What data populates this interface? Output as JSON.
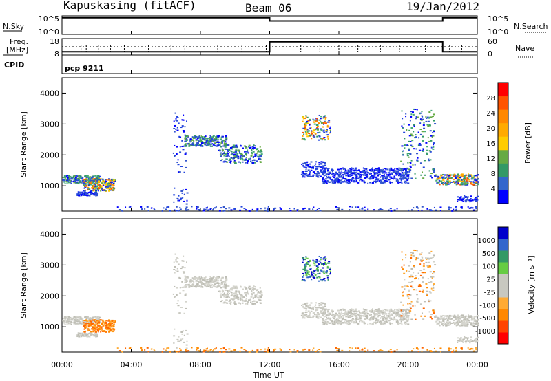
{
  "header": {
    "station": "Kapuskasing (fitACF)",
    "beam": "Beam 06",
    "date": "19/Jan/2012"
  },
  "colors": {
    "frame": "#000000",
    "power_scale": [
      "#0000ff",
      "#3366cc",
      "#339966",
      "#66aa44",
      "#ffcc00",
      "#ffaa00",
      "#ff8800",
      "#ff5500",
      "#ff0000"
    ],
    "velocity_scale": [
      "#ff0000",
      "#ff4400",
      "#ff8800",
      "#ffaa33",
      "#c8c8c0",
      "#c8c8c0",
      "#66cc44",
      "#339966",
      "#3366cc",
      "#0000cc"
    ]
  },
  "panels": {
    "nsky": {
      "left_label": "N.Sky",
      "right_label": "N.Search",
      "left_ticks": [
        "10^5",
        "10^0"
      ],
      "right_ticks": [
        "10^5",
        "10^0"
      ]
    },
    "freq": {
      "left_label_top": "Freq.",
      "left_label_bottom": "[MHz]",
      "right_label": "Nave",
      "left_ticks": [
        "18",
        "8"
      ],
      "right_ticks": [
        "60",
        "0"
      ]
    },
    "cpid": {
      "label": "CPID",
      "value": "pcp 9211"
    }
  },
  "chart_data": [
    {
      "type": "line",
      "name": "N.Sky / N.Search",
      "x": [
        "00:00",
        "12:00",
        "12:00",
        "22:00",
        "22:00",
        "24:00"
      ],
      "y": [
        4.5,
        4.5,
        3.6,
        3.6,
        4.5,
        4.5
      ],
      "ylim": [
        0,
        5
      ],
      "yscale": "log10"
    },
    {
      "type": "line",
      "name": "Frequency / Nave",
      "x": [
        "00:00",
        "12:00",
        "12:00",
        "22:00",
        "22:00",
        "24:00"
      ],
      "y": [
        10,
        10,
        16,
        16,
        10,
        10
      ],
      "ylim": [
        8,
        18
      ],
      "dotted_level": 13
    },
    {
      "type": "heatmap",
      "ylabel": "Slant Range [km]",
      "yticks": [
        1000,
        2000,
        3000,
        4000
      ],
      "ylim": [
        180,
        4500
      ],
      "colorbar": {
        "label": "Power [dB]",
        "ticks": [
          "4",
          "8",
          "12",
          "16",
          "20",
          "24",
          "28"
        ]
      }
    },
    {
      "type": "heatmap",
      "ylabel": "Slant Range [km]",
      "yticks": [
        1000,
        2000,
        3000,
        4000
      ],
      "ylim": [
        180,
        4500
      ],
      "colorbar": {
        "label": "Velocity [m s⁻¹]",
        "ticks": [
          "1000",
          "500",
          "100",
          "25",
          "-25",
          "-100",
          "-500",
          "-1000"
        ]
      }
    }
  ],
  "xaxis": {
    "ticks": [
      "00:00",
      "04:00",
      "08:00",
      "12:00",
      "16:00",
      "20:00",
      "00:00"
    ],
    "label": "Time UT"
  }
}
